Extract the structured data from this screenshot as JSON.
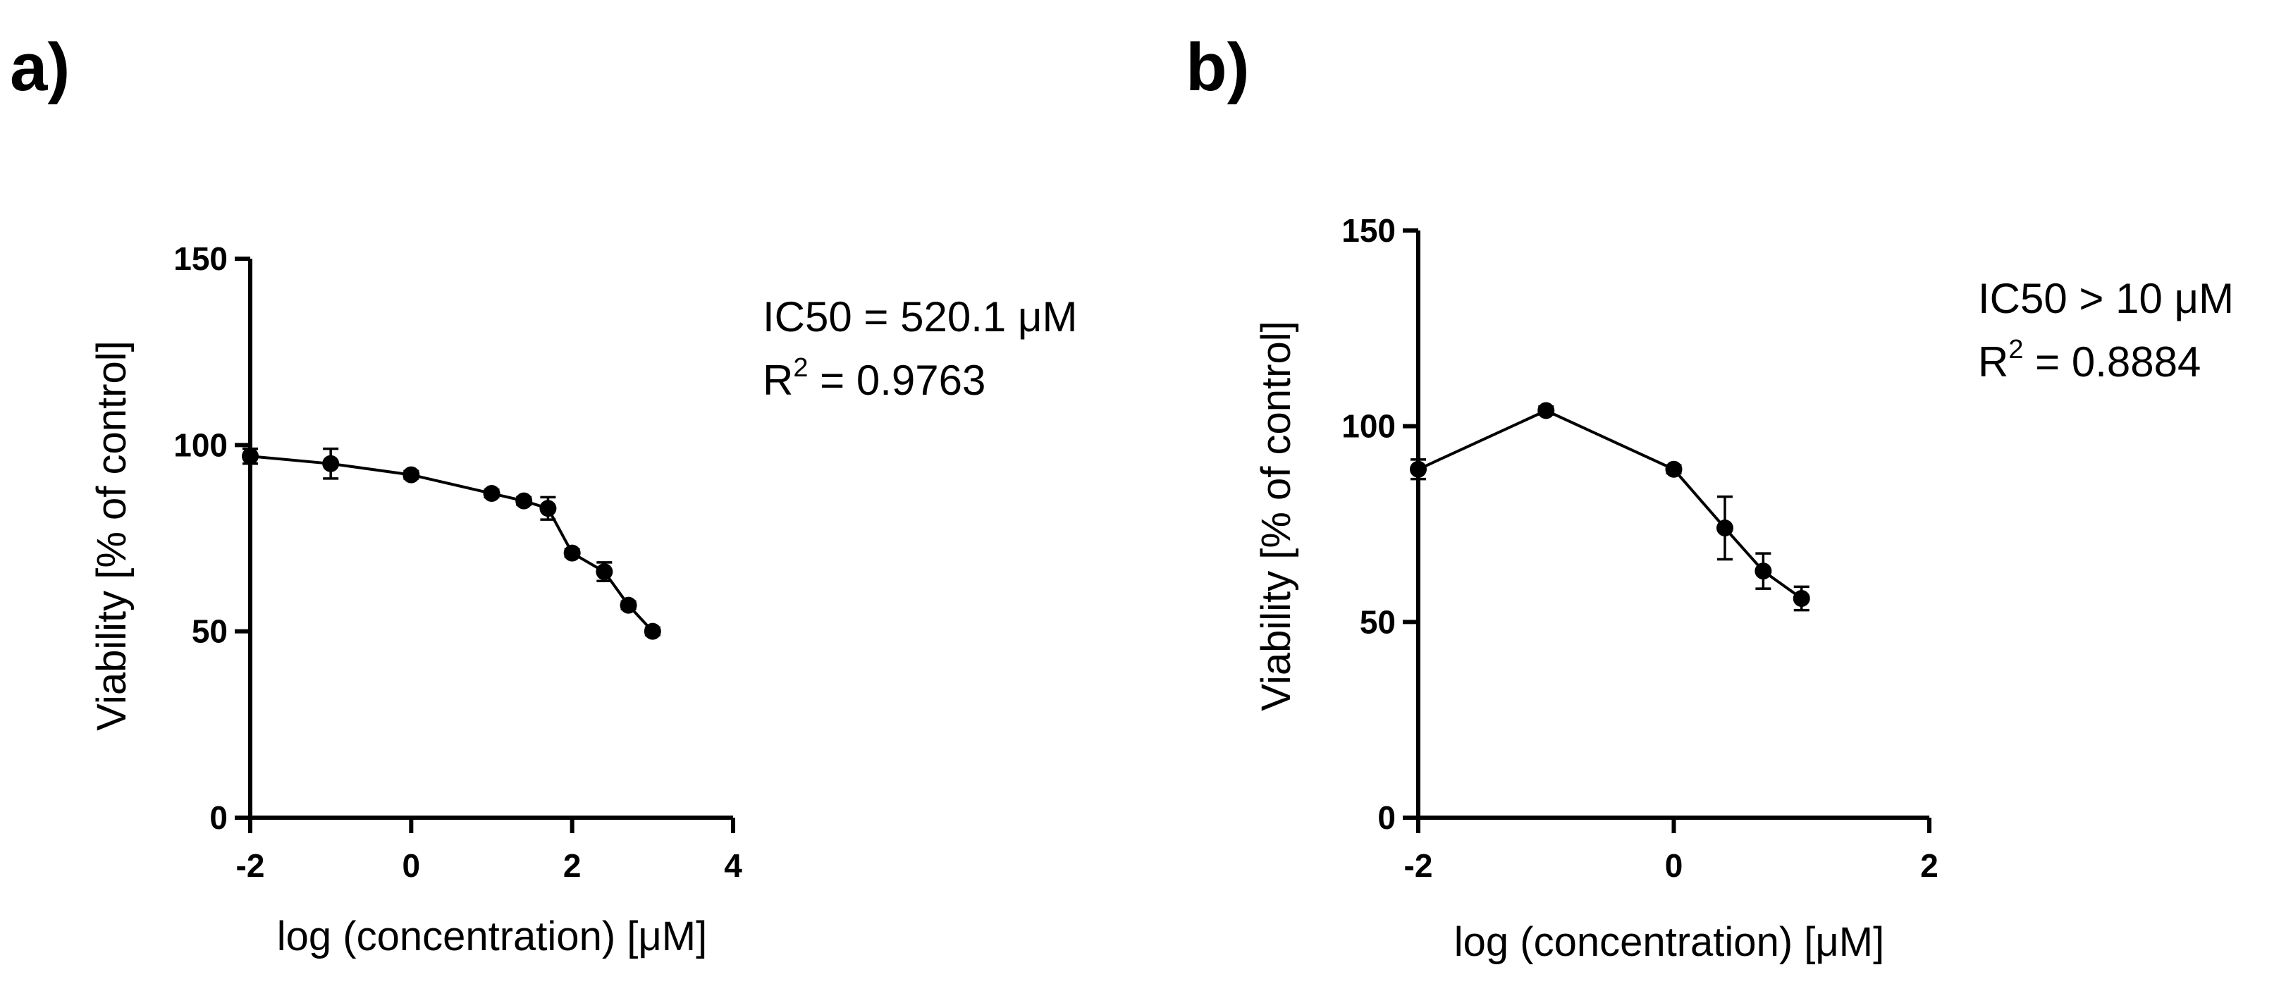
{
  "chart_data": [
    {
      "type": "line",
      "panel_label": "a)",
      "xlabel": "log (concentration) [μM]",
      "ylabel": "Viability [% of control]",
      "xlim": [
        -2,
        4
      ],
      "ylim": [
        0,
        150
      ],
      "x_ticks": [
        -2,
        0,
        2,
        4
      ],
      "y_ticks": [
        0,
        50,
        100,
        150
      ],
      "annotation": {
        "ic50": "IC50 = 520.1 μM",
        "r2_prefix": "R",
        "r2_sup": "2",
        "r2_value": " = 0.9763"
      },
      "series": [
        {
          "x": [
            -2,
            -1,
            0,
            1,
            1.4,
            1.7,
            2,
            2.4,
            2.7,
            3
          ],
          "y": [
            97,
            95,
            92,
            87,
            85,
            83,
            71,
            66,
            57,
            50
          ],
          "err": [
            2,
            4,
            1,
            1,
            1,
            3,
            1,
            2.5,
            1,
            1
          ]
        }
      ]
    },
    {
      "type": "line",
      "panel_label": "b)",
      "xlabel": "log (concentration) [μM]",
      "ylabel": "Viability [% of control]",
      "xlim": [
        -2,
        2
      ],
      "ylim": [
        0,
        150
      ],
      "x_ticks": [
        -2,
        0,
        2
      ],
      "y_ticks": [
        0,
        50,
        100,
        150
      ],
      "annotation": {
        "ic50": "IC50 > 10 μM",
        "r2_prefix": "R",
        "r2_sup": "2",
        "r2_value": " = 0.8884"
      },
      "series": [
        {
          "x": [
            -2,
            -1,
            0,
            0.4,
            0.7,
            1
          ],
          "y": [
            89,
            104,
            89,
            74,
            63,
            56
          ],
          "err": [
            2.5,
            1,
            1,
            8,
            4.5,
            3
          ]
        }
      ]
    }
  ]
}
